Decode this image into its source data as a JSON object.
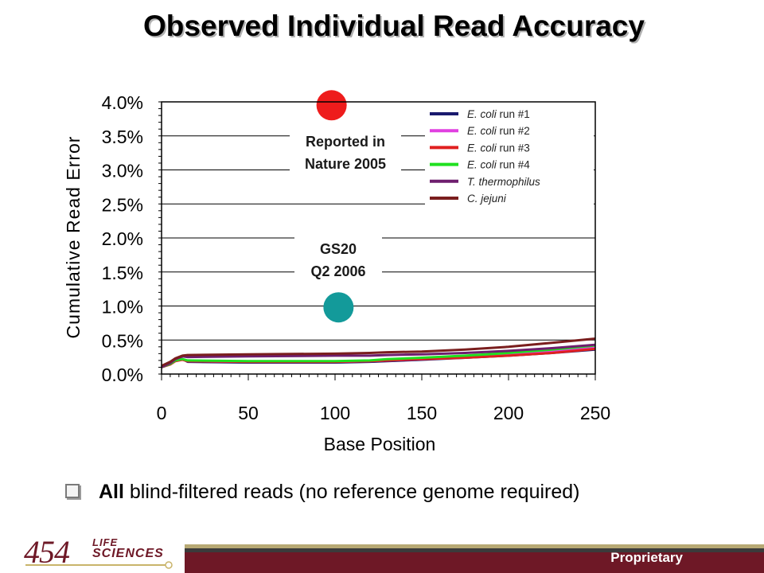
{
  "slide": {
    "title": "Observed Individual Read Accuracy",
    "bullet_bold": "All",
    "bullet_rest": " blind-filtered reads (no reference genome required)",
    "footer_label": "Proprietary"
  },
  "logo": {
    "number": "454",
    "word1": "LIFE",
    "word2": "SCIENCES",
    "color": "#6e1826"
  },
  "chart_data": {
    "type": "line",
    "title": "",
    "xlabel": "Base Position",
    "ylabel": "Cumulative Read Error",
    "xlim": [
      0,
      250
    ],
    "ylim": [
      0,
      4.0
    ],
    "x_ticks": [
      "0",
      "50",
      "100",
      "150",
      "200",
      "250"
    ],
    "y_ticks": [
      "0.0%",
      "0.5%",
      "1.0%",
      "1.5%",
      "2.0%",
      "2.5%",
      "3.0%",
      "3.5%",
      "4.0%"
    ],
    "grid": "horizontal",
    "legend": "top-right",
    "series": [
      {
        "name_italic": "E. coli",
        "name_rest": " run #1",
        "color": "#1a1a6e",
        "x": [
          0,
          5,
          8,
          12,
          15,
          50,
          100,
          120,
          130,
          150,
          175,
          200,
          225,
          250
        ],
        "y": [
          0.1,
          0.15,
          0.2,
          0.22,
          0.18,
          0.17,
          0.17,
          0.18,
          0.19,
          0.21,
          0.24,
          0.27,
          0.31,
          0.36
        ]
      },
      {
        "name_italic": "E. coli",
        "name_rest": " run #2",
        "color": "#e040e0",
        "x": [
          0,
          5,
          8,
          12,
          15,
          50,
          100,
          120,
          130,
          150,
          175,
          200,
          225,
          250
        ],
        "y": [
          0.1,
          0.15,
          0.2,
          0.22,
          0.19,
          0.18,
          0.18,
          0.19,
          0.2,
          0.22,
          0.25,
          0.28,
          0.33,
          0.4
        ]
      },
      {
        "name_italic": "E. coli",
        "name_rest": " run #3",
        "color": "#e02020",
        "x": [
          0,
          5,
          8,
          12,
          15,
          50,
          100,
          120,
          130,
          150,
          175,
          200,
          225,
          250
        ],
        "y": [
          0.1,
          0.14,
          0.19,
          0.21,
          0.19,
          0.18,
          0.18,
          0.19,
          0.2,
          0.22,
          0.24,
          0.27,
          0.31,
          0.37
        ]
      },
      {
        "name_italic": "E. coli",
        "name_rest": " run #4",
        "color": "#20e020",
        "x": [
          0,
          5,
          8,
          12,
          15,
          50,
          100,
          120,
          130,
          150,
          175,
          200,
          225,
          250
        ],
        "y": [
          0.1,
          0.15,
          0.2,
          0.22,
          0.2,
          0.19,
          0.19,
          0.2,
          0.22,
          0.24,
          0.27,
          0.31,
          0.36,
          0.42
        ]
      },
      {
        "name_italic": "T. thermophilus",
        "name_rest": "",
        "color": "#6e1e6e",
        "x": [
          0,
          5,
          8,
          12,
          15,
          50,
          100,
          120,
          130,
          150,
          175,
          200,
          225,
          250
        ],
        "y": [
          0.1,
          0.16,
          0.22,
          0.26,
          0.25,
          0.26,
          0.27,
          0.27,
          0.28,
          0.29,
          0.31,
          0.34,
          0.38,
          0.43
        ]
      },
      {
        "name_italic": "C. jejuni",
        "name_rest": "",
        "color": "#7a1e1e",
        "x": [
          0,
          5,
          8,
          12,
          15,
          50,
          100,
          120,
          130,
          150,
          175,
          200,
          225,
          250
        ],
        "y": [
          0.12,
          0.18,
          0.23,
          0.27,
          0.28,
          0.29,
          0.3,
          0.31,
          0.32,
          0.33,
          0.36,
          0.4,
          0.46,
          0.52
        ]
      }
    ],
    "markers": [
      {
        "label_lines": [
          "Reported in",
          "Nature 2005"
        ],
        "x": 98,
        "y": 3.95,
        "color": "#ee1c1c"
      },
      {
        "label_lines": [
          "GS20",
          "Q2 2006"
        ],
        "x": 102,
        "y": 0.98,
        "color": "#139a9a"
      }
    ]
  }
}
